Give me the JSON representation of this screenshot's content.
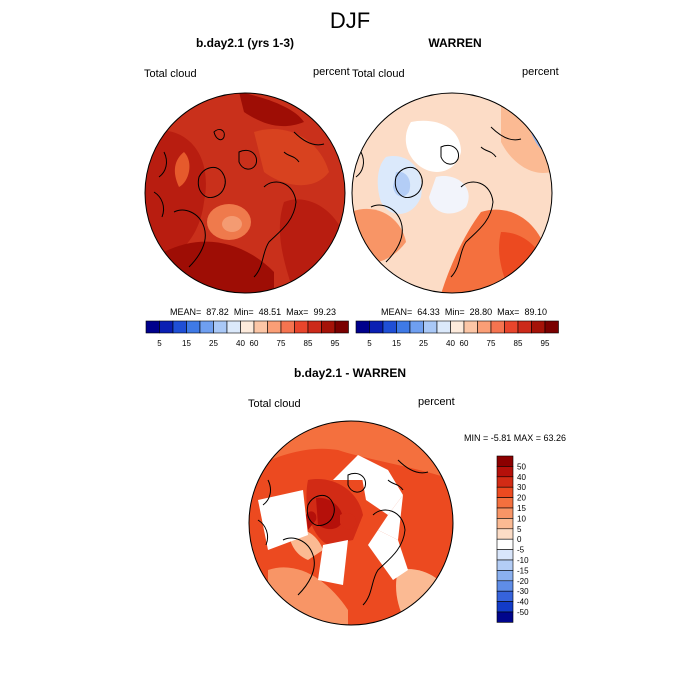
{
  "figure": {
    "title": "DJF"
  },
  "panels": [
    {
      "title": "b.day2.1 (yrs 1-3)",
      "left_label": "Total cloud",
      "right_label": "percent",
      "stats": {
        "mean_label": "MEAN=",
        "mean": "87.82",
        "min_label": "Min=",
        "min": "48.51",
        "max_label": "Max=",
        "max": "99.23"
      }
    },
    {
      "title": "WARREN",
      "left_label": "Total cloud",
      "right_label": "percent",
      "stats": {
        "mean_label": "MEAN=",
        "mean": "64.33",
        "min_label": "Min=",
        "min": "28.80",
        "max_label": "Max=",
        "max": "89.10"
      }
    },
    {
      "title": "b.day2.1 - WARREN",
      "left_label": "Total cloud",
      "right_label": "percent",
      "stats_text": "MIN =  -5.81 MAX =  63.26"
    }
  ],
  "abs_colorbar": {
    "ticks": [
      "5",
      "15",
      "25",
      "40",
      "60",
      "75",
      "85",
      "95"
    ],
    "colors": [
      "#00008c",
      "#0a1fb3",
      "#1f4fd6",
      "#3f7ae6",
      "#6f9ff0",
      "#a9c8f7",
      "#dbe9fb",
      "#fdebdc",
      "#fcc6a6",
      "#fa9e76",
      "#f57450",
      "#e8452c",
      "#cc2a1a",
      "#a51208",
      "#7a0000"
    ]
  },
  "diff_colorbar": {
    "labels": [
      "50",
      "40",
      "30",
      "20",
      "15",
      "10",
      "5",
      "0",
      "-5",
      "-10",
      "-15",
      "-20",
      "-30",
      "-40",
      "-50"
    ],
    "colors": [
      "#8c0000",
      "#b5100a",
      "#d22b15",
      "#ec4a20",
      "#f4703e",
      "#f89566",
      "#fbba93",
      "#fcdcc6",
      "#ffffff",
      "#d9e6fb",
      "#b3cdf6",
      "#8ab0f0",
      "#5f8de8",
      "#3663dc",
      "#123bc8",
      "#00058c"
    ]
  },
  "map_colors": {
    "abs_panel1": [
      "#c9301b",
      "#d8421f",
      "#e65a2c",
      "#b81d10",
      "#9e0d05",
      "#ef7a4c",
      "#f49b72"
    ],
    "abs_panel2": [
      "#fcdcc6",
      "#fbba93",
      "#f89566",
      "#f4703e",
      "#ec4a20",
      "#ffffff",
      "#dbe9fb",
      "#b3cdf6",
      "#8ab0f0",
      "#f2f4fb"
    ],
    "diff_panel": [
      "#ec4a20",
      "#f4703e",
      "#f89566",
      "#d22b15",
      "#fbba93",
      "#b5100a",
      "#ffffff"
    ]
  }
}
